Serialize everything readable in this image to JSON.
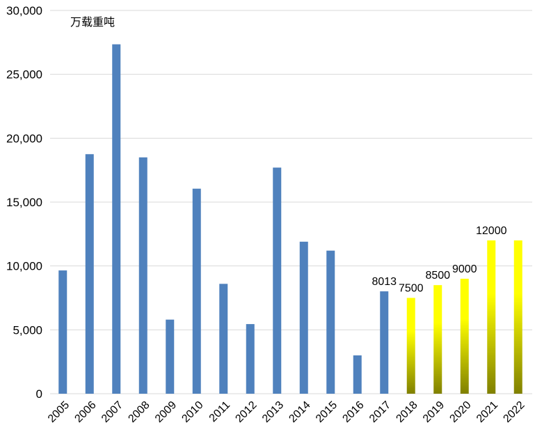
{
  "chart_data": {
    "type": "bar",
    "unit_label": "万载重吨",
    "categories": [
      "2005",
      "2006",
      "2007",
      "2008",
      "2009",
      "2010",
      "2011",
      "2012",
      "2013",
      "2014",
      "2015",
      "2016",
      "2017",
      "2018",
      "2019",
      "2020",
      "2021",
      "2022"
    ],
    "values": [
      9650,
      18750,
      27350,
      18500,
      5800,
      16050,
      8600,
      5450,
      17700,
      11900,
      11200,
      3000,
      8013,
      7500,
      8500,
      9000,
      12000,
      12000
    ],
    "data_labels": [
      "",
      "",
      "",
      "",
      "",
      "",
      "",
      "",
      "",
      "",
      "",
      "",
      "8013",
      "7500",
      "8500",
      "9000",
      "12000",
      ""
    ],
    "highlight_from_index": 13,
    "colors": {
      "bar": "#4f81bd",
      "forecast_top": "#ffff00",
      "forecast_bottom": "#808000"
    },
    "ylim": [
      0,
      30000
    ],
    "yticks": [
      0,
      5000,
      10000,
      15000,
      20000,
      25000,
      30000
    ],
    "ytick_labels": [
      "0",
      "5,000",
      "10,000",
      "15,000",
      "20,000",
      "25,000",
      "30,000"
    ],
    "grid": true,
    "legend": "none"
  }
}
